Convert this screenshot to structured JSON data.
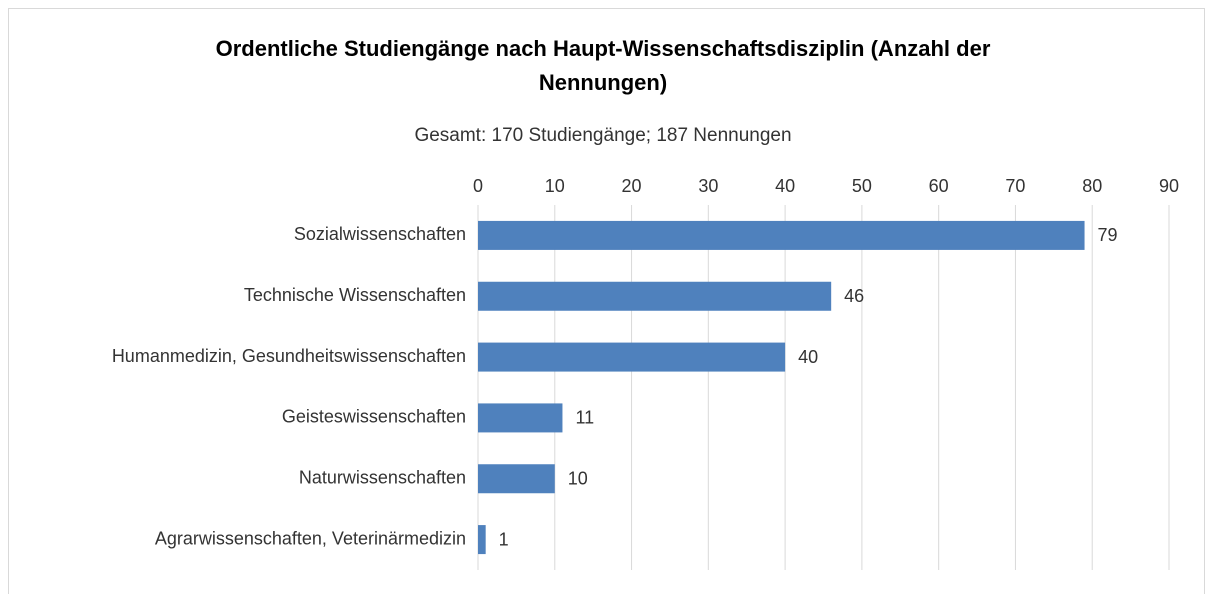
{
  "chart_data": {
    "type": "bar",
    "orientation": "horizontal",
    "title": "Ordentliche Studiengänge nach Haupt-Wissenschaftsdisziplin (Anzahl der Nennungen)",
    "subtitle": "Gesamt: 170 Studiengänge; 187 Nennungen",
    "categories": [
      "Sozialwissenschaften",
      "Technische Wissenschaften",
      "Humanmedizin, Gesundheitswissenschaften",
      "Geisteswissenschaften",
      "Naturwissenschaften",
      "Agrarwissenschaften, Veterinärmedizin"
    ],
    "values": [
      79,
      46,
      40,
      11,
      10,
      1
    ],
    "color": "#4f81bd",
    "xlim": [
      0,
      90
    ],
    "xticks": [
      0,
      10,
      20,
      30,
      40,
      50,
      60,
      70,
      80,
      90
    ],
    "grid": true
  }
}
